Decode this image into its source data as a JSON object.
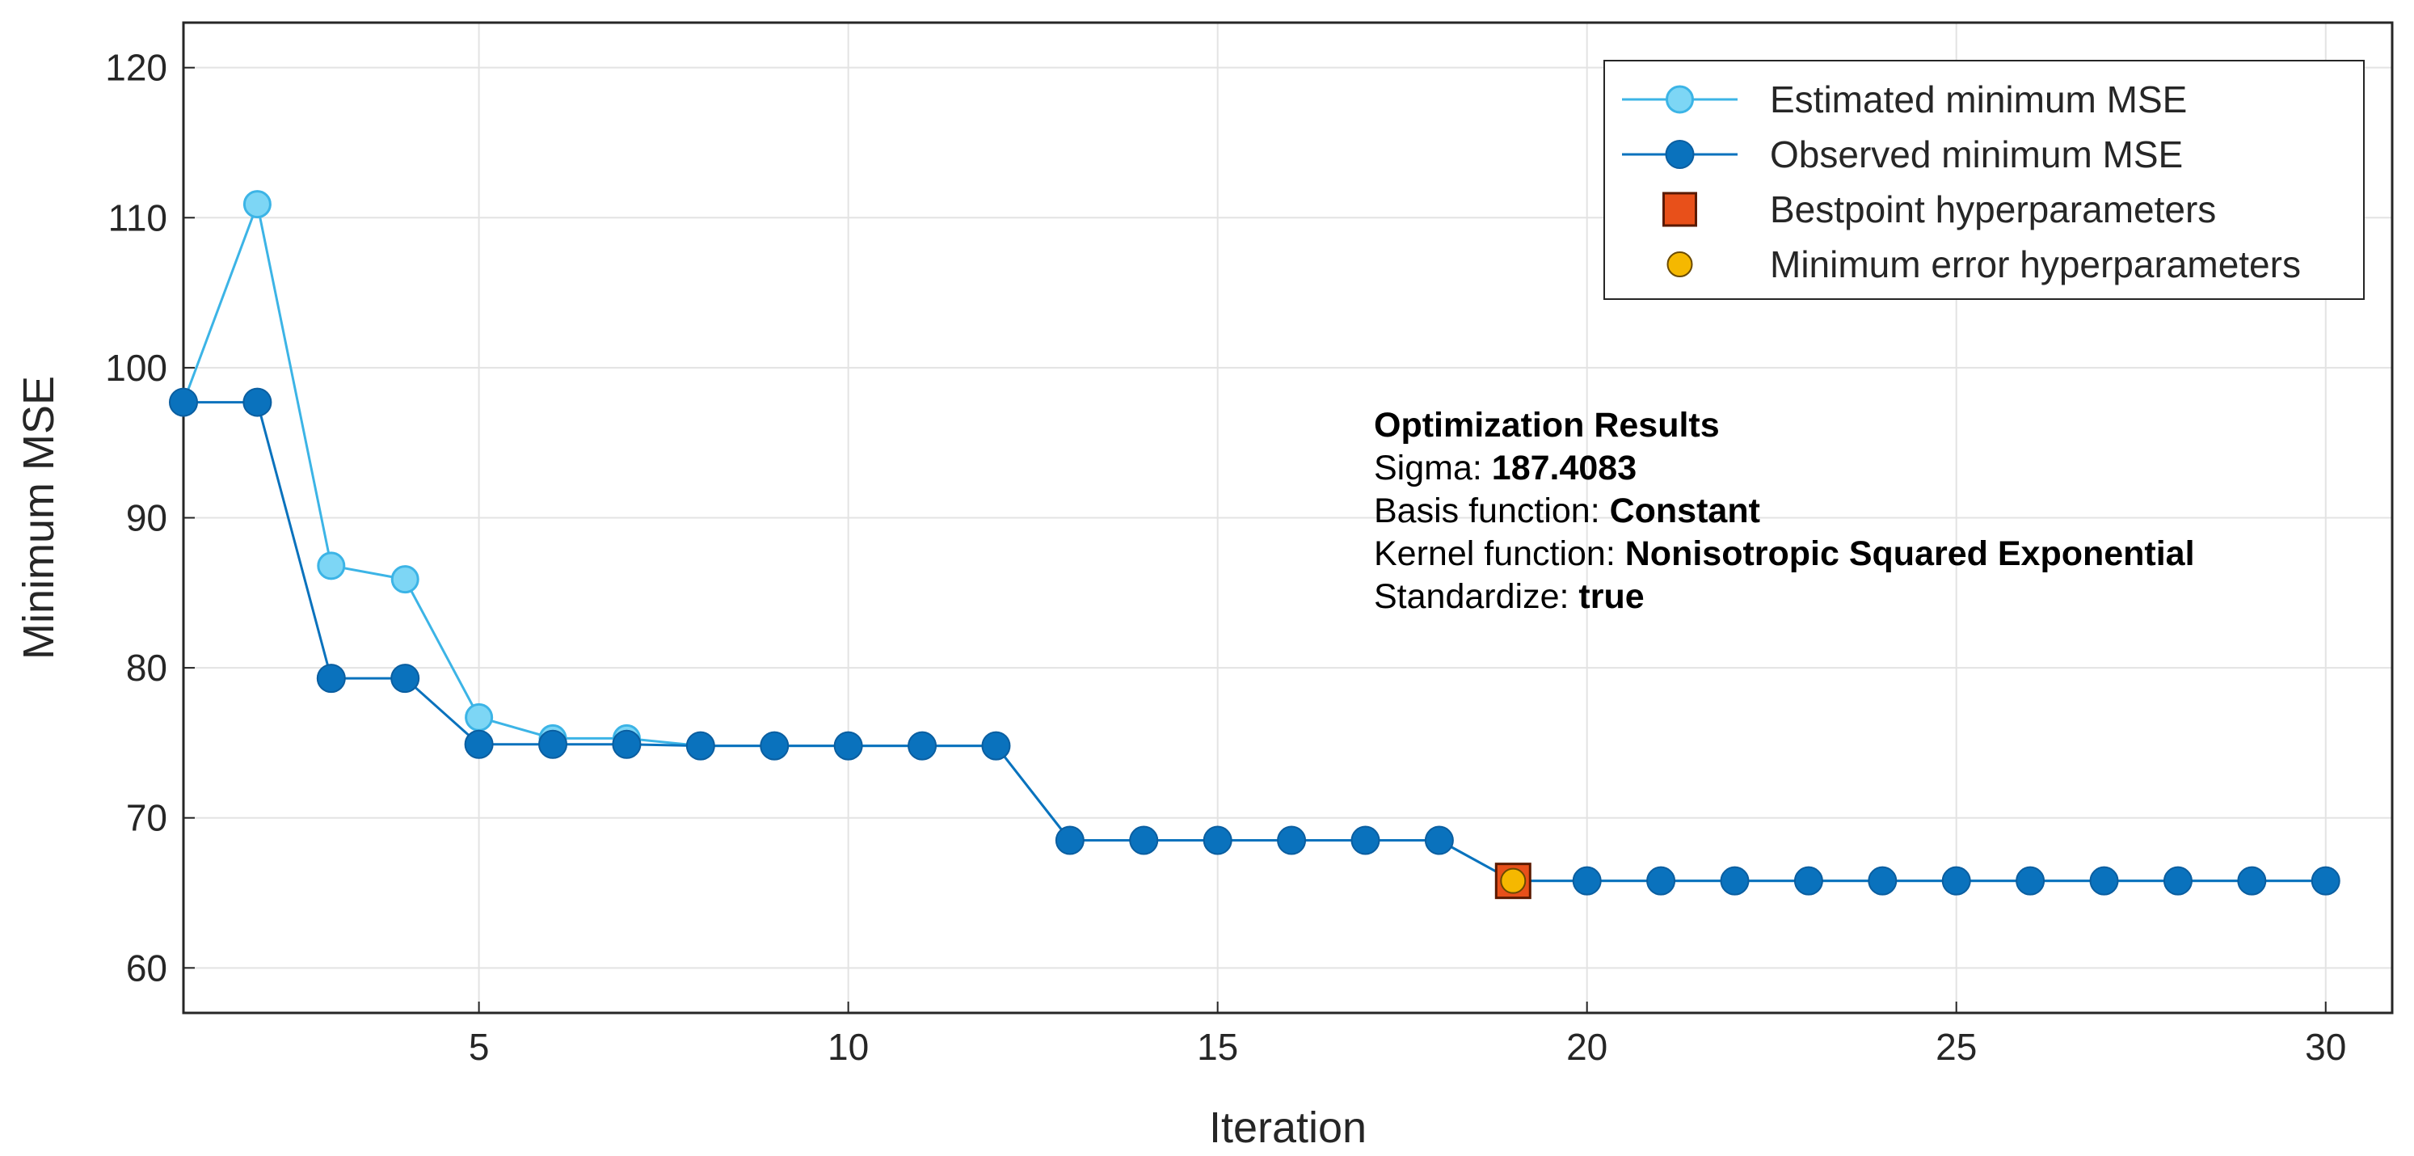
{
  "chart_data": {
    "type": "line",
    "xlabel": "Iteration",
    "ylabel": "Minimum MSE",
    "xlim": [
      1,
      30.9
    ],
    "ylim": [
      57,
      123
    ],
    "xticks": [
      5,
      10,
      15,
      20,
      25,
      30
    ],
    "yticks": [
      60,
      70,
      80,
      90,
      100,
      110,
      120
    ],
    "grid": true,
    "legend_position": "top-right",
    "x": [
      1,
      2,
      3,
      4,
      5,
      6,
      7,
      8,
      9,
      10,
      11,
      12,
      13,
      14,
      15,
      16,
      17,
      18,
      19,
      20,
      21,
      22,
      23,
      24,
      25,
      26,
      27,
      28,
      29,
      30
    ],
    "series": [
      {
        "name": "Estimated minimum MSE",
        "marker": "open-circle",
        "color": "#7dd6f5",
        "values": [
          97.7,
          110.9,
          86.8,
          85.9,
          76.7,
          75.3,
          75.3,
          74.8,
          74.8,
          74.8,
          74.8,
          74.8,
          68.5,
          68.5,
          68.5,
          68.5,
          68.5,
          68.5,
          65.8,
          65.8,
          65.8,
          65.8,
          65.8,
          65.8,
          65.8,
          65.8,
          65.8,
          65.8,
          65.8,
          65.8
        ]
      },
      {
        "name": "Observed minimum MSE",
        "marker": "filled-circle",
        "color": "#0a72bd",
        "values": [
          97.7,
          97.7,
          79.3,
          79.3,
          74.9,
          74.9,
          74.9,
          74.8,
          74.8,
          74.8,
          74.8,
          74.8,
          68.5,
          68.5,
          68.5,
          68.5,
          68.5,
          68.5,
          65.8,
          65.8,
          65.8,
          65.8,
          65.8,
          65.8,
          65.8,
          65.8,
          65.8,
          65.8,
          65.8,
          65.8
        ]
      }
    ],
    "points": [
      {
        "name": "Bestpoint hyperparameters",
        "marker": "square",
        "color": "#e8501a",
        "x": 19,
        "y": 65.8
      },
      {
        "name": "Minimum error hyperparameters",
        "marker": "circle",
        "color": "#f5b800",
        "x": 19,
        "y": 65.8
      }
    ],
    "annotation": {
      "title": "Optimization Results",
      "lines": [
        {
          "label": "Sigma: ",
          "value": "187.4083"
        },
        {
          "label": "Basis function: ",
          "value": "Constant"
        },
        {
          "label": "Kernel function: ",
          "value": "Nonisotropic Squared Exponential"
        },
        {
          "label": "Standardize: ",
          "value": "true"
        }
      ]
    }
  }
}
